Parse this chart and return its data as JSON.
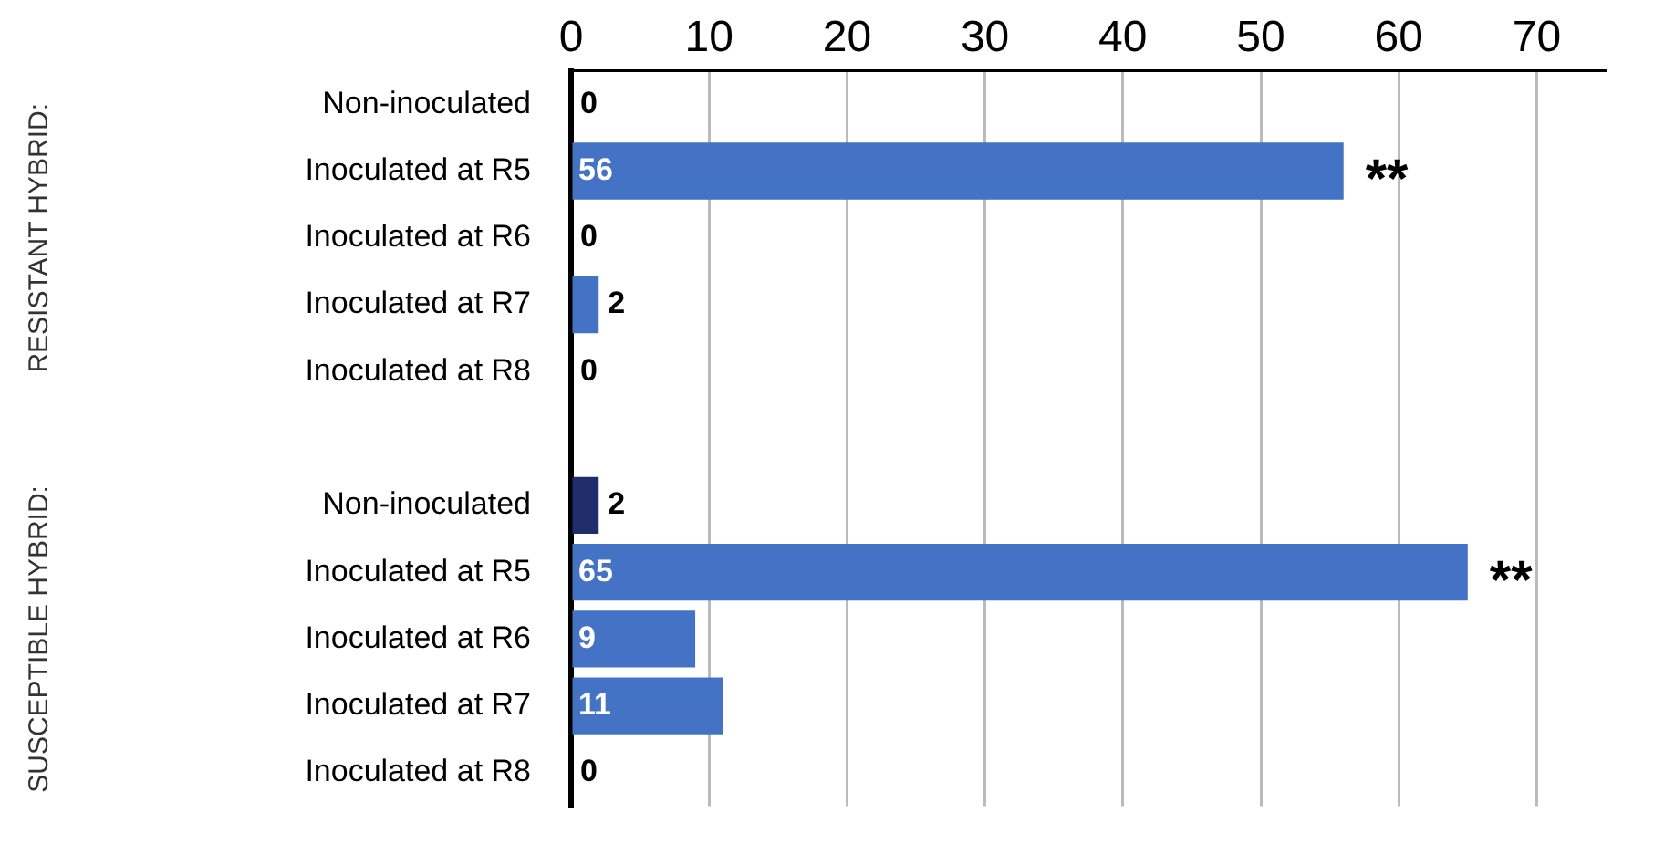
{
  "chart_data": {
    "type": "bar",
    "orientation": "horizontal",
    "categories": [
      "Non-inoculated",
      "Inoculated at R5",
      "Inoculated at R6",
      "Inoculated at R7",
      "Inoculated at R8",
      null,
      "Non-inoculated",
      "Inoculated at R5",
      "Inoculated at R6",
      "Inoculated at R7",
      "Inoculated at R8"
    ],
    "values": [
      0,
      56,
      0,
      2,
      0,
      null,
      2,
      65,
      9,
      11,
      0
    ],
    "colors": [
      "#4472c4",
      "#4472c4",
      "#4472c4",
      "#4472c4",
      "#4472c4",
      "#4472c4",
      "#1f2d6b",
      "#4472c4",
      "#4472c4",
      "#4472c4",
      "#4472c4"
    ],
    "xlim": [
      0,
      75
    ],
    "xticks": [
      0,
      10,
      20,
      30,
      40,
      50,
      60,
      70
    ],
    "grid": "x",
    "legend": false,
    "data_labels": true,
    "annotations": [
      "RESISTANT HYBRID:",
      "SUSCEPTIBLE HYBRID:",
      "**",
      "**"
    ]
  }
}
